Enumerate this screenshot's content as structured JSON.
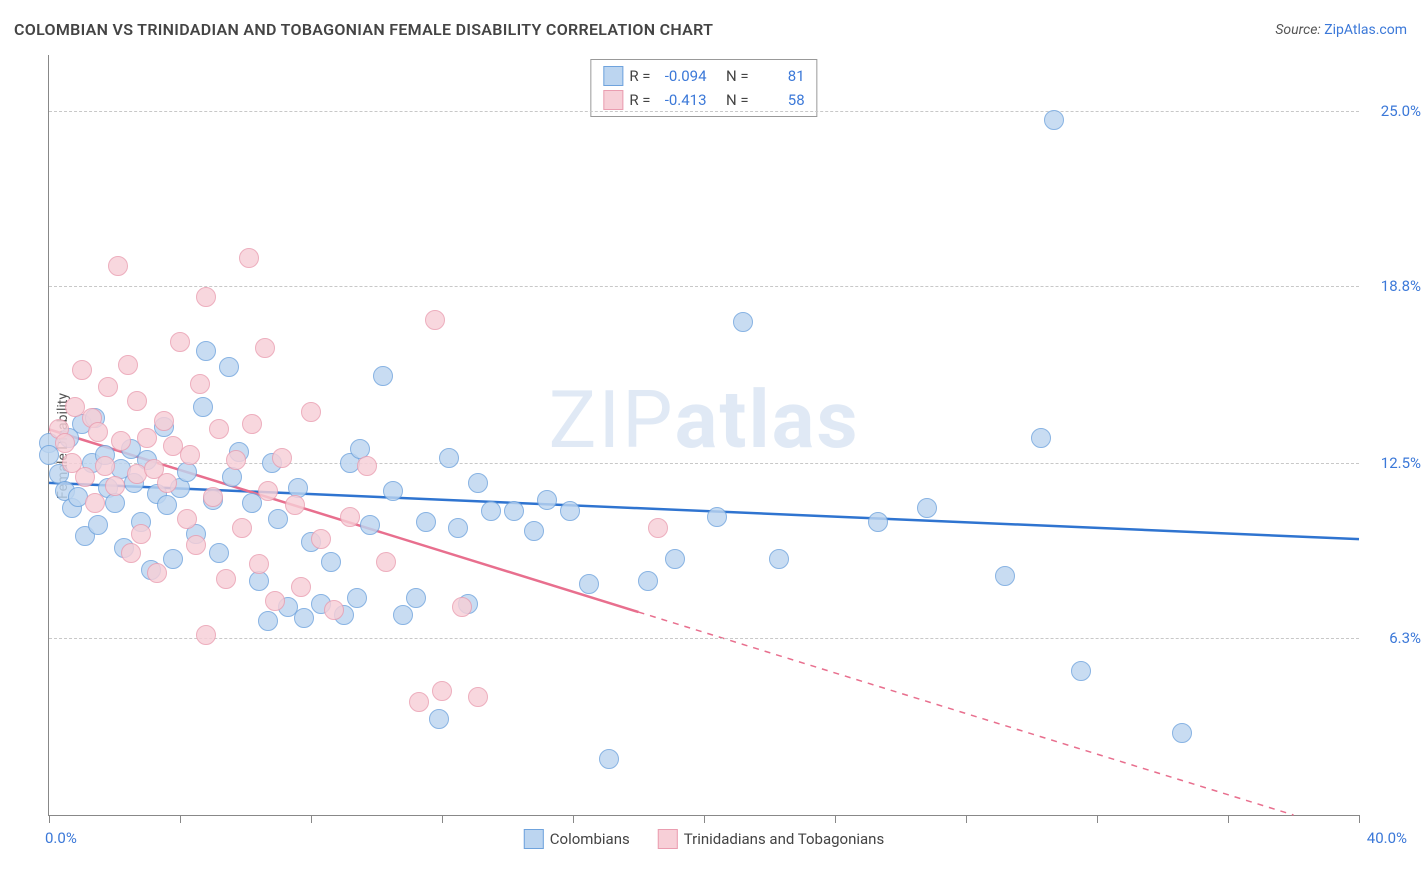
{
  "header": {
    "title": "COLOMBIAN VS TRINIDADIAN AND TOBAGONIAN FEMALE DISABILITY CORRELATION CHART",
    "source_prefix": "Source: ",
    "source_link": "ZipAtlas.com"
  },
  "axes": {
    "ylabel": "Female Disability",
    "xlim": [
      0.0,
      40.0
    ],
    "ylim": [
      0.0,
      27.0
    ],
    "xtick_minor_step": 4.0,
    "yticks": [
      6.3,
      12.5,
      18.8,
      25.0
    ],
    "ytick_labels": [
      "6.3%",
      "12.5%",
      "18.8%",
      "25.0%"
    ],
    "xlim_labels": [
      "0.0%",
      "40.0%"
    ]
  },
  "watermark": {
    "light": "ZIP",
    "bold": "atlas"
  },
  "series": [
    {
      "key": "colombians",
      "label": "Colombians",
      "color_fill": "#bcd5f0",
      "color_stroke": "#6fa3dd",
      "line_color": "#2f74d0",
      "marker_radius": 9,
      "stats": {
        "R": "-0.094",
        "N": "81"
      },
      "trend": {
        "x1": 0,
        "y1": 11.8,
        "x2": 40,
        "y2": 9.8,
        "solid_until_x": 40
      },
      "points": [
        [
          0,
          13.2
        ],
        [
          0,
          12.8
        ],
        [
          0.3,
          12.1
        ],
        [
          0.5,
          11.5
        ],
        [
          0.6,
          13.4
        ],
        [
          0.7,
          10.9
        ],
        [
          0.9,
          11.3
        ],
        [
          1.0,
          13.9
        ],
        [
          1.1,
          9.9
        ],
        [
          1.3,
          12.5
        ],
        [
          1.4,
          14.1
        ],
        [
          1.5,
          10.3
        ],
        [
          1.7,
          12.8
        ],
        [
          1.8,
          11.6
        ],
        [
          2.0,
          11.1
        ],
        [
          2.2,
          12.3
        ],
        [
          2.3,
          9.5
        ],
        [
          2.5,
          13.0
        ],
        [
          2.6,
          11.8
        ],
        [
          2.8,
          10.4
        ],
        [
          3.0,
          12.6
        ],
        [
          3.1,
          8.7
        ],
        [
          3.3,
          11.4
        ],
        [
          3.5,
          13.8
        ],
        [
          3.6,
          11.0
        ],
        [
          3.8,
          9.1
        ],
        [
          4.0,
          11.6
        ],
        [
          4.2,
          12.2
        ],
        [
          4.5,
          10.0
        ],
        [
          4.7,
          14.5
        ],
        [
          4.8,
          16.5
        ],
        [
          5.0,
          11.2
        ],
        [
          5.2,
          9.3
        ],
        [
          5.5,
          15.9
        ],
        [
          5.6,
          12.0
        ],
        [
          5.8,
          12.9
        ],
        [
          6.2,
          11.1
        ],
        [
          6.4,
          8.3
        ],
        [
          6.7,
          6.9
        ],
        [
          6.8,
          12.5
        ],
        [
          7.0,
          10.5
        ],
        [
          7.3,
          7.4
        ],
        [
          7.6,
          11.6
        ],
        [
          7.8,
          7.0
        ],
        [
          8.0,
          9.7
        ],
        [
          8.3,
          7.5
        ],
        [
          8.6,
          9.0
        ],
        [
          9.0,
          7.1
        ],
        [
          9.2,
          12.5
        ],
        [
          9.4,
          7.7
        ],
        [
          9.5,
          13.0
        ],
        [
          9.8,
          10.3
        ],
        [
          10.2,
          15.6
        ],
        [
          10.5,
          11.5
        ],
        [
          10.8,
          7.1
        ],
        [
          11.2,
          7.7
        ],
        [
          11.5,
          10.4
        ],
        [
          11.9,
          3.4
        ],
        [
          12.2,
          12.7
        ],
        [
          12.5,
          10.2
        ],
        [
          12.8,
          7.5
        ],
        [
          13.1,
          11.8
        ],
        [
          13.5,
          10.8
        ],
        [
          14.2,
          10.8
        ],
        [
          14.8,
          10.1
        ],
        [
          15.2,
          11.2
        ],
        [
          15.9,
          10.8
        ],
        [
          16.5,
          8.2
        ],
        [
          17.1,
          2.0
        ],
        [
          18.3,
          8.3
        ],
        [
          19.1,
          9.1
        ],
        [
          20.4,
          10.6
        ],
        [
          21.2,
          17.5
        ],
        [
          22.3,
          9.1
        ],
        [
          25.3,
          10.4
        ],
        [
          26.8,
          10.9
        ],
        [
          29.2,
          8.5
        ],
        [
          30.3,
          13.4
        ],
        [
          30.7,
          24.7
        ],
        [
          31.5,
          5.1
        ],
        [
          34.6,
          2.9
        ]
      ]
    },
    {
      "key": "trinidadians",
      "label": "Trinidadians and Tobagonians",
      "color_fill": "#f7cfd7",
      "color_stroke": "#ea9db0",
      "line_color": "#e86f8e",
      "marker_radius": 9,
      "stats": {
        "R": "-0.413",
        "N": "58"
      },
      "trend": {
        "x1": 0,
        "y1": 13.7,
        "x2": 38,
        "y2": 0,
        "solid_until_x": 18
      },
      "points": [
        [
          0.3,
          13.7
        ],
        [
          0.5,
          13.2
        ],
        [
          0.7,
          12.5
        ],
        [
          0.8,
          14.5
        ],
        [
          1.0,
          15.8
        ],
        [
          1.1,
          12.0
        ],
        [
          1.3,
          14.1
        ],
        [
          1.4,
          11.1
        ],
        [
          1.5,
          13.6
        ],
        [
          1.7,
          12.4
        ],
        [
          1.8,
          15.2
        ],
        [
          2.0,
          11.7
        ],
        [
          2.1,
          19.5
        ],
        [
          2.2,
          13.3
        ],
        [
          2.4,
          16.0
        ],
        [
          2.5,
          9.3
        ],
        [
          2.7,
          14.7
        ],
        [
          2.7,
          12.1
        ],
        [
          2.8,
          10.0
        ],
        [
          3.0,
          13.4
        ],
        [
          3.2,
          12.3
        ],
        [
          3.3,
          8.6
        ],
        [
          3.5,
          14.0
        ],
        [
          3.6,
          11.8
        ],
        [
          3.8,
          13.1
        ],
        [
          4.0,
          16.8
        ],
        [
          4.2,
          10.5
        ],
        [
          4.3,
          12.8
        ],
        [
          4.5,
          9.6
        ],
        [
          4.6,
          15.3
        ],
        [
          4.8,
          18.4
        ],
        [
          4.8,
          6.4
        ],
        [
          5.0,
          11.3
        ],
        [
          5.2,
          13.7
        ],
        [
          5.4,
          8.4
        ],
        [
          5.7,
          12.6
        ],
        [
          5.9,
          10.2
        ],
        [
          6.1,
          19.8
        ],
        [
          6.2,
          13.9
        ],
        [
          6.4,
          8.9
        ],
        [
          6.6,
          16.6
        ],
        [
          6.7,
          11.5
        ],
        [
          6.9,
          7.6
        ],
        [
          7.1,
          12.7
        ],
        [
          7.5,
          11.0
        ],
        [
          7.7,
          8.1
        ],
        [
          8.0,
          14.3
        ],
        [
          8.3,
          9.8
        ],
        [
          8.7,
          7.3
        ],
        [
          9.2,
          10.6
        ],
        [
          9.7,
          12.4
        ],
        [
          10.3,
          9.0
        ],
        [
          11.3,
          4.0
        ],
        [
          11.8,
          17.6
        ],
        [
          12.0,
          4.4
        ],
        [
          12.6,
          7.4
        ],
        [
          13.1,
          4.2
        ],
        [
          18.6,
          10.2
        ]
      ]
    }
  ],
  "legend_labels": {
    "R": "R =",
    "N": "N ="
  }
}
